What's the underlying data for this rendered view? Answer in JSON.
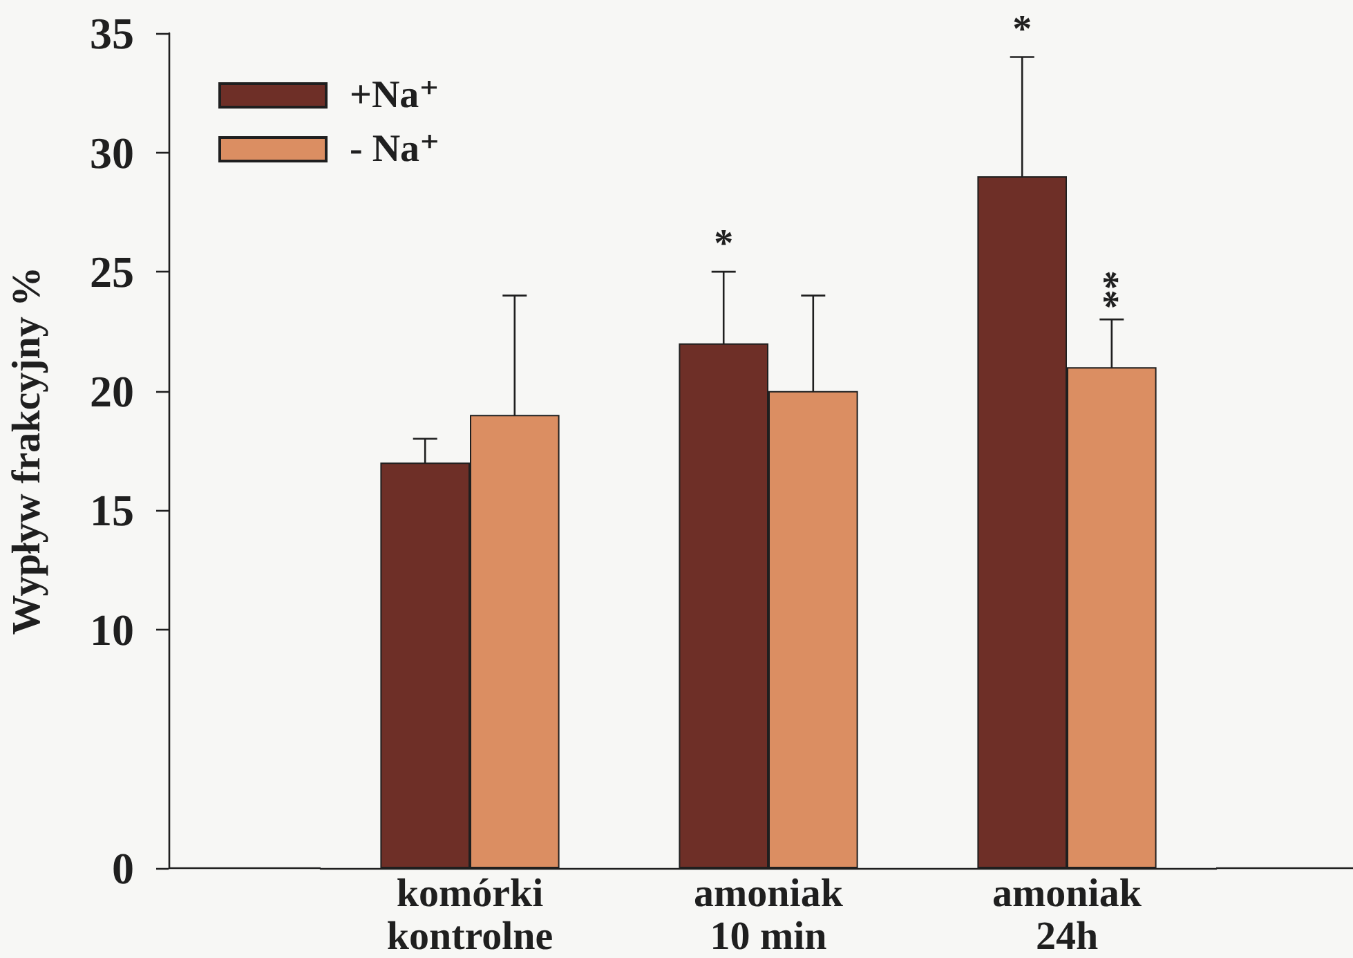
{
  "chart_data": {
    "type": "bar",
    "ylabel": "Wypływ frakcyjny %",
    "categories": [
      "komórki\nkontrolne",
      "amoniak\n10 min",
      "amoniak\n24h"
    ],
    "series": [
      {
        "name": "+Na⁺",
        "color": "#6e2f27",
        "values": [
          17,
          22,
          29
        ],
        "errors": [
          1,
          3,
          5
        ]
      },
      {
        "name": "- Na⁺",
        "color": "#db8e62",
        "values": [
          19,
          20,
          21
        ],
        "errors": [
          5,
          4,
          2
        ]
      }
    ],
    "ylim": [
      0,
      35
    ],
    "yticks": [
      0,
      10,
      15,
      20,
      25,
      30,
      35
    ],
    "grid": false,
    "legend": "top left",
    "annotations": [
      {
        "text": "*",
        "x": "amoniak\n10 min",
        "y": 22
      },
      "*",
      {
        "text": "**",
        "x": "amoniak\n24h",
        "y": 21
      }
    ]
  }
}
